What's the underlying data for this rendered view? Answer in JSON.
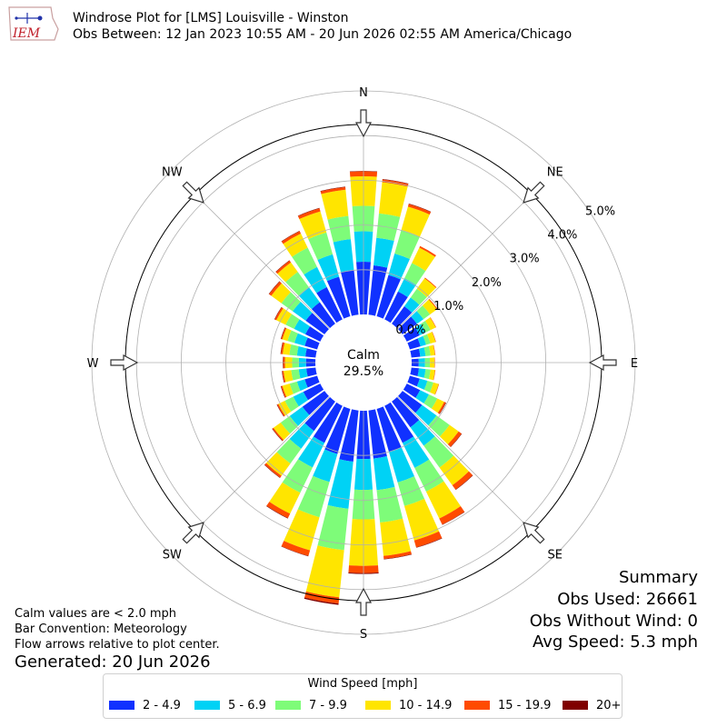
{
  "header": {
    "title": "Windrose Plot for [LMS] Louisville - Winston",
    "subtitle": "Obs Between: 12 Jan 2023 10:55 AM - 20 Jun 2026 02:55 AM America/Chicago",
    "logo_text": "IEM"
  },
  "summary": {
    "heading": "Summary",
    "obs_used": "Obs Used: 26661",
    "obs_without_wind": "Obs Without Wind: 0",
    "avg_speed": "Avg Speed: 5.3 mph"
  },
  "notes": {
    "calm_note": "Calm values are < 2.0 mph",
    "bar_convention": "Bar Convention: Meteorology",
    "flow_arrows": "Flow arrows relative to plot center.",
    "generated": "Generated: 20 Jun 2026"
  },
  "colors": {
    "grid": "#b0b0b0",
    "axis": "#000000"
  },
  "chart_data": {
    "type": "windrose",
    "title": "Windrose Plot for [LMS] Louisville - Winston",
    "calm_label": "Calm",
    "calm_value": "29.5%",
    "calm_percent": 29.5,
    "rlim": [
      0,
      6.0
    ],
    "ring_ticks": [
      0.0,
      1.0,
      2.0,
      3.0,
      4.0,
      5.0
    ],
    "ring_labels": [
      "0.0%",
      "1.0%",
      "2.0%",
      "3.0%",
      "4.0%",
      "5.0%"
    ],
    "directions": [
      {
        "label": "N",
        "angle": 0
      },
      {
        "label": "NE",
        "angle": 45
      },
      {
        "label": "E",
        "angle": 90
      },
      {
        "label": "SE",
        "angle": 135
      },
      {
        "label": "S",
        "angle": 180
      },
      {
        "label": "SW",
        "angle": 225
      },
      {
        "label": "W",
        "angle": 270
      },
      {
        "label": "NW",
        "angle": 315
      }
    ],
    "legend_title": "Wind Speed [mph]",
    "bins": [
      {
        "label": "2 - 4.9",
        "color": "#1031ff"
      },
      {
        "label": "5 - 6.9",
        "color": "#00d2f5"
      },
      {
        "label": "7 - 9.9",
        "color": "#7efc79"
      },
      {
        "label": "10 - 14.9",
        "color": "#ffe500"
      },
      {
        "label": "15 - 19.9",
        "color": "#ff4b00"
      },
      {
        "label": "20+",
        "color": "#800000"
      }
    ],
    "sector_width_deg": 10,
    "sectors": [
      {
        "dir": 0,
        "cum": [
          1.18,
          1.86,
          2.43,
          3.09,
          3.2,
          3.21
        ]
      },
      {
        "dir": 10,
        "cum": [
          1.11,
          1.73,
          2.28,
          2.98,
          3.04,
          3.05
        ]
      },
      {
        "dir": 20,
        "cum": [
          0.96,
          1.46,
          2.01,
          2.55,
          2.61,
          2.62
        ]
      },
      {
        "dir": 30,
        "cum": [
          0.69,
          1.02,
          1.4,
          1.78,
          1.82,
          1.82
        ]
      },
      {
        "dir": 40,
        "cum": [
          0.48,
          0.72,
          0.96,
          1.25,
          1.27,
          1.27
        ]
      },
      {
        "dir": 50,
        "cum": [
          0.4,
          0.58,
          0.76,
          0.95,
          0.97,
          0.97
        ]
      },
      {
        "dir": 60,
        "cum": [
          0.32,
          0.47,
          0.59,
          0.72,
          0.73,
          0.73
        ]
      },
      {
        "dir": 70,
        "cum": [
          0.25,
          0.38,
          0.48,
          0.6,
          0.61,
          0.61
        ]
      },
      {
        "dir": 80,
        "cum": [
          0.2,
          0.32,
          0.43,
          0.53,
          0.54,
          0.54
        ]
      },
      {
        "dir": 90,
        "cum": [
          0.16,
          0.3,
          0.41,
          0.51,
          0.52,
          0.52
        ]
      },
      {
        "dir": 100,
        "cum": [
          0.17,
          0.32,
          0.43,
          0.53,
          0.54,
          0.54
        ]
      },
      {
        "dir": 110,
        "cum": [
          0.23,
          0.41,
          0.55,
          0.67,
          0.68,
          0.68
        ]
      },
      {
        "dir": 120,
        "cum": [
          0.33,
          0.55,
          0.76,
          0.93,
          0.97,
          0.98
        ]
      },
      {
        "dir": 130,
        "cum": [
          0.54,
          0.94,
          1.3,
          1.55,
          1.63,
          1.64
        ]
      },
      {
        "dir": 140,
        "cum": [
          0.71,
          1.22,
          1.82,
          2.31,
          2.43,
          2.44
        ]
      },
      {
        "dir": 150,
        "cum": [
          0.92,
          1.54,
          2.13,
          2.8,
          2.95,
          2.96
        ]
      },
      {
        "dir": 160,
        "cum": [
          1.0,
          1.71,
          2.26,
          3.06,
          3.22,
          3.23
        ]
      },
      {
        "dir": 170,
        "cum": [
          1.08,
          1.79,
          2.52,
          3.27,
          3.34,
          3.35
        ]
      },
      {
        "dir": 180,
        "cum": [
          1.08,
          1.77,
          2.43,
          3.47,
          3.63,
          3.65
        ]
      },
      {
        "dir": 190,
        "cum": [
          1.15,
          2.21,
          3.14,
          4.2,
          4.34,
          4.37
        ]
      },
      {
        "dir": 200,
        "cum": [
          1.05,
          1.7,
          2.52,
          3.29,
          3.42,
          3.43
        ]
      },
      {
        "dir": 210,
        "cum": [
          0.92,
          1.53,
          2.16,
          2.68,
          2.79,
          2.8
        ]
      },
      {
        "dir": 220,
        "cum": [
          0.81,
          1.3,
          1.71,
          2.05,
          2.1,
          2.11
        ]
      },
      {
        "dir": 230,
        "cum": [
          0.61,
          0.96,
          1.21,
          1.41,
          1.44,
          1.45
        ]
      },
      {
        "dir": 240,
        "cum": [
          0.42,
          0.67,
          0.88,
          1.04,
          1.07,
          1.08
        ]
      },
      {
        "dir": 250,
        "cum": [
          0.29,
          0.47,
          0.64,
          0.81,
          0.84,
          0.85
        ]
      },
      {
        "dir": 260,
        "cum": [
          0.21,
          0.38,
          0.55,
          0.72,
          0.75,
          0.76
        ]
      },
      {
        "dir": 270,
        "cum": [
          0.21,
          0.37,
          0.52,
          0.68,
          0.72,
          0.73
        ]
      },
      {
        "dir": 280,
        "cum": [
          0.23,
          0.42,
          0.59,
          0.74,
          0.78,
          0.79
        ]
      },
      {
        "dir": 290,
        "cum": [
          0.29,
          0.53,
          0.69,
          0.81,
          0.84,
          0.85
        ]
      },
      {
        "dir": 300,
        "cum": [
          0.37,
          0.65,
          0.86,
          1.09,
          1.13,
          1.14
        ]
      },
      {
        "dir": 310,
        "cum": [
          0.52,
          0.88,
          1.19,
          1.47,
          1.53,
          1.54
        ]
      },
      {
        "dir": 320,
        "cum": [
          0.59,
          1.01,
          1.43,
          1.69,
          1.74,
          1.75
        ]
      },
      {
        "dir": 330,
        "cum": [
          0.8,
          1.3,
          1.78,
          2.13,
          2.19,
          2.2
        ]
      },
      {
        "dir": 340,
        "cum": [
          0.92,
          1.44,
          1.95,
          2.44,
          2.51,
          2.52
        ]
      },
      {
        "dir": 350,
        "cum": [
          1.01,
          1.7,
          2.22,
          2.81,
          2.87,
          2.88
        ]
      }
    ]
  }
}
